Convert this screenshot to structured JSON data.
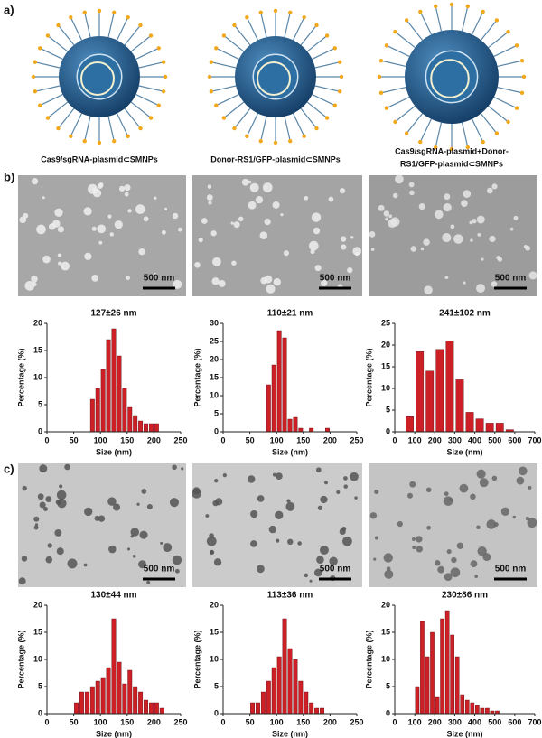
{
  "panel_labels": [
    "a)",
    "b)",
    "c)"
  ],
  "captions": [
    [
      "Cas9/sgRNA-plasmid⊂SMNPs"
    ],
    [
      "Donor-RS1/GFP-plasmid⊂SMNPs"
    ],
    [
      "Cas9/sgRNA-plasmid+Donor-",
      "RS1/GFP-plasmid⊂SMNPs"
    ]
  ],
  "scale_bars": [
    "500 nm",
    "500 nm",
    "500 nm",
    "500 nm",
    "500 nm",
    "500 nm"
  ],
  "chart_data": [
    {
      "type": "histogram",
      "title": "127±26 nm",
      "x_label": "Size (nm)",
      "y_label": "Percentage (%)",
      "color": "#cc1f26",
      "bins": [
        80,
        90,
        100,
        110,
        120,
        130,
        140,
        150,
        160,
        170,
        180,
        190,
        200,
        210
      ],
      "counts": [
        6,
        8,
        11.5,
        17,
        19,
        14,
        8,
        4.5,
        3,
        2,
        1.5,
        1.5,
        1.5
      ],
      "xlim": [
        0,
        250
      ],
      "xticks": [
        0,
        50,
        100,
        150,
        200,
        250
      ],
      "ylim": [
        0,
        20
      ],
      "yticks": [
        0,
        5,
        10,
        15,
        20
      ]
    },
    {
      "type": "histogram",
      "title": "110±21 nm",
      "x_label": "Size (nm)",
      "y_label": "Percentage (%)",
      "color": "#cc1f26",
      "bins": [
        80,
        90,
        100,
        110,
        120,
        130,
        140,
        150,
        160,
        170,
        180,
        190,
        200
      ],
      "counts": [
        13,
        18.5,
        28,
        26,
        3.5,
        4,
        1,
        0,
        1,
        0,
        0,
        1
      ],
      "xlim": [
        0,
        250
      ],
      "xticks": [
        0,
        50,
        100,
        150,
        200,
        250
      ],
      "ylim": [
        0,
        30
      ],
      "yticks": [
        0,
        5,
        10,
        15,
        20,
        25,
        30
      ]
    },
    {
      "type": "histogram",
      "title": "241±102 nm",
      "x_label": "Size (nm)",
      "y_label": "Percentage (%)",
      "color": "#cc1f26",
      "bins": [
        50,
        100,
        150,
        200,
        250,
        300,
        350,
        400,
        450,
        500,
        550,
        600
      ],
      "counts": [
        3.5,
        18.5,
        14,
        19,
        21,
        12,
        4.5,
        3,
        2,
        2,
        0.5
      ],
      "xlim": [
        0,
        700
      ],
      "xticks": [
        0,
        100,
        200,
        300,
        400,
        500,
        600,
        700
      ],
      "ylim": [
        0,
        25
      ],
      "yticks": [
        0,
        5,
        10,
        15,
        20,
        25
      ]
    },
    {
      "type": "histogram",
      "title": "130±44 nm",
      "x_label": "Size (nm)",
      "y_label": "Percentage (%)",
      "color": "#cc1f26",
      "bins": [
        50,
        60,
        70,
        80,
        90,
        100,
        110,
        120,
        130,
        140,
        150,
        160,
        170,
        180,
        190,
        200,
        210,
        220
      ],
      "counts": [
        2,
        4,
        4,
        5,
        6,
        6.5,
        8.5,
        17.5,
        9.5,
        5.5,
        8,
        5,
        4,
        2.5,
        2,
        2,
        1
      ],
      "xlim": [
        0,
        250
      ],
      "xticks": [
        0,
        50,
        100,
        150,
        200,
        250
      ],
      "ylim": [
        0,
        20
      ],
      "yticks": [
        0,
        5,
        10,
        15,
        20
      ]
    },
    {
      "type": "histogram",
      "title": "113±36 nm",
      "x_label": "Size (nm)",
      "y_label": "Percentage (%)",
      "color": "#cc1f26",
      "bins": [
        50,
        60,
        70,
        80,
        90,
        100,
        110,
        120,
        130,
        140,
        150,
        160,
        170,
        180,
        190
      ],
      "counts": [
        2,
        2,
        4,
        6,
        8.5,
        10.5,
        17.5,
        12,
        10,
        6,
        4,
        2,
        1,
        1
      ],
      "xlim": [
        0,
        250
      ],
      "xticks": [
        0,
        50,
        100,
        150,
        200,
        250
      ],
      "ylim": [
        0,
        20
      ],
      "yticks": [
        0,
        5,
        10,
        15,
        20
      ]
    },
    {
      "type": "histogram",
      "title": "230±86 nm",
      "x_label": "Size (nm)",
      "y_label": "Percentage (%)",
      "color": "#cc1f26",
      "bins": [
        100,
        125,
        150,
        175,
        200,
        225,
        250,
        275,
        300,
        325,
        350,
        375,
        400,
        425,
        450,
        475,
        500,
        525
      ],
      "counts": [
        5,
        17,
        10.5,
        15,
        3,
        17.5,
        19,
        14.5,
        10.5,
        3.5,
        2.5,
        2,
        1.5,
        1,
        1,
        0.5,
        0.5
      ],
      "xlim": [
        0,
        700
      ],
      "xticks": [
        0,
        100,
        200,
        300,
        400,
        500,
        600,
        700
      ],
      "ylim": [
        0,
        20
      ],
      "yticks": [
        0,
        5,
        10,
        15,
        20
      ]
    }
  ]
}
